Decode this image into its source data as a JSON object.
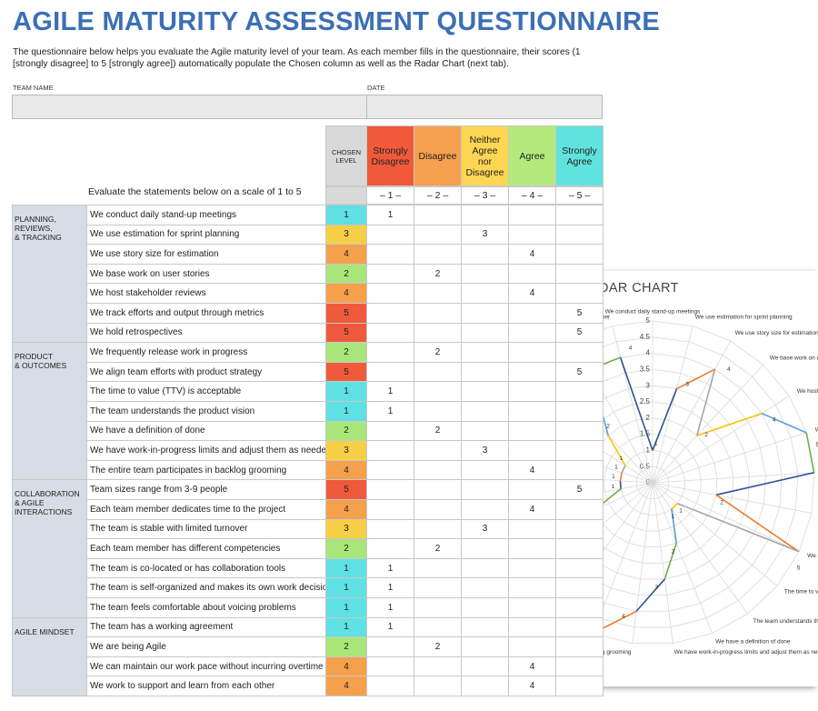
{
  "header": {
    "title": "AGILE MATURITY ASSESSMENT QUESTIONNAIRE",
    "intro": "The questionnaire below helps you evaluate the Agile maturity level of your team. As each member fills in the questionnaire, their scores (1 [strongly disagree] to 5 [strongly agree]) automatically populate the Chosen column as well as the Radar Chart (next tab)."
  },
  "form": {
    "team_name_label": "TEAM NAME",
    "date_label": "DATE"
  },
  "table": {
    "chosen_header": "CHOSEN LEVEL",
    "instruction": "Evaluate the statements below on a scale of 1 to 5",
    "levels": [
      {
        "label": "Strongly Disagree",
        "scale": "– 1 –",
        "color": "#f05a3a"
      },
      {
        "label": "Disagree",
        "scale": "– 2 –",
        "color": "#f5a04e"
      },
      {
        "label": "Neither Agree nor Disagree",
        "scale": "– 3 –",
        "color": "#fdd654"
      },
      {
        "label": "Agree",
        "scale": "– 4 –",
        "color": "#b4ea7c"
      },
      {
        "label": "Strongly Agree",
        "scale": "– 5 –",
        "color": "#5fe3dc"
      }
    ],
    "chosen_colors": [
      "#5fe0e3",
      "#a9e67a",
      "#f7cf47",
      "#f5a04b",
      "#ef5a3c"
    ],
    "sections": [
      {
        "title": "PLANNING,\nREVIEWS,\n& TRACKING",
        "rows": [
          {
            "statement": "We conduct daily stand-up meetings",
            "chosen": 1
          },
          {
            "statement": "We use estimation for sprint planning",
            "chosen": 3
          },
          {
            "statement": "We use story size for estimation",
            "chosen": 4
          },
          {
            "statement": "We base work on user stories",
            "chosen": 2
          },
          {
            "statement": "We host stakeholder reviews",
            "chosen": 4
          },
          {
            "statement": "We track efforts and output through metrics",
            "chosen": 5
          },
          {
            "statement": "We hold retrospectives",
            "chosen": 5
          }
        ]
      },
      {
        "title": "PRODUCT\n& OUTCOMES",
        "rows": [
          {
            "statement": "We frequently release work in progress",
            "chosen": 2
          },
          {
            "statement": "We align team efforts with product strategy",
            "chosen": 5
          },
          {
            "statement": "The time to value (TTV) is acceptable",
            "chosen": 1
          },
          {
            "statement": "The team understands the product vision",
            "chosen": 1
          },
          {
            "statement": "We have a definition of done",
            "chosen": 2
          },
          {
            "statement": "We have work-in-progress limits and adjust them as needed",
            "chosen": 3
          },
          {
            "statement": "The entire team participates in backlog grooming",
            "chosen": 4
          }
        ]
      },
      {
        "title": "COLLABORATION\n& AGILE\nINTERACTIONS",
        "rows": [
          {
            "statement": "Team sizes range from 3-9 people",
            "chosen": 5
          },
          {
            "statement": "Each team member dedicates time to the project",
            "chosen": 4
          },
          {
            "statement": "The team is stable with limited turnover",
            "chosen": 3
          },
          {
            "statement": "Each team member has different competencies",
            "chosen": 2
          },
          {
            "statement": "The team is co-located or has collaboration tools",
            "chosen": 1
          },
          {
            "statement": "The team is self-organized and makes its own work decisions",
            "chosen": 1
          },
          {
            "statement": "The team feels comfortable about voicing problems",
            "chosen": 1
          }
        ]
      },
      {
        "title": "AGILE MINDSET",
        "rows": [
          {
            "statement": "The team has a working agreement",
            "chosen": 1
          },
          {
            "statement": "We are being Agile",
            "chosen": 2
          },
          {
            "statement": "We can maintain our work pace without incurring overtime",
            "chosen": 4
          },
          {
            "statement": "We work to support and learn from each other",
            "chosen": 4
          }
        ]
      }
    ]
  },
  "radar_chart": {
    "type": "radar",
    "title": "AGILE MATURITY ASSESSMENT RADAR CHART",
    "rlim": [
      0,
      5
    ],
    "rticks": [
      0,
      0.5,
      1,
      1.5,
      2,
      2.5,
      3,
      3.5,
      4,
      4.5,
      5
    ],
    "segment_colors": [
      "#2f5597",
      "#ed7d31",
      "#a5a5a5",
      "#ffc000",
      "#5b9bd5",
      "#70ad47"
    ]
  }
}
